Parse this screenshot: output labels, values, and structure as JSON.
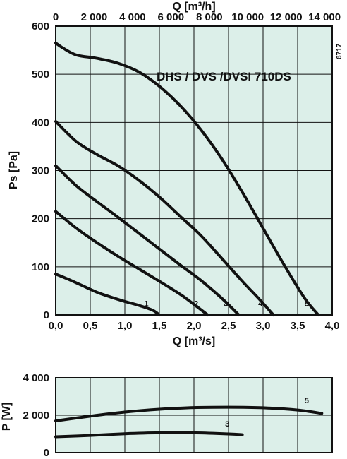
{
  "chart_data": [
    {
      "type": "line",
      "title": "DHS / DVS /DVSI 710DS",
      "code": "6717",
      "xlabel": "Q [m³/s]",
      "x2label": "Q [m³/h]",
      "ylabel": "Ps [Pa]",
      "xlim": [
        0,
        4.0
      ],
      "x2lim": [
        0,
        14400
      ],
      "ylim": [
        0,
        600
      ],
      "xticks": [
        "0,0",
        "0,5",
        "1,0",
        "1,5",
        "2,0",
        "2,5",
        "3,0",
        "3,5",
        "4,0"
      ],
      "x2ticks": [
        "0",
        "2 000",
        "4 000",
        "6 000",
        "8 000",
        "10 000",
        "12 000",
        "14 000"
      ],
      "yticks": [
        "0",
        "100",
        "200",
        "300",
        "400",
        "500",
        "600"
      ],
      "grid": true,
      "background": "#dcefe9",
      "series": [
        {
          "name": "1",
          "x": [
            0.0,
            0.2,
            0.4,
            0.6,
            0.8,
            1.0,
            1.2,
            1.4,
            1.5
          ],
          "y": [
            85,
            73,
            60,
            47,
            37,
            28,
            20,
            10,
            0
          ],
          "label_at": [
            1.28,
            18
          ]
        },
        {
          "name": "2",
          "x": [
            0.0,
            0.3,
            0.6,
            0.9,
            1.2,
            1.5,
            1.8,
            2.0,
            2.2
          ],
          "y": [
            215,
            180,
            150,
            122,
            96,
            70,
            43,
            22,
            0
          ],
          "label_at": [
            2.0,
            18
          ]
        },
        {
          "name": "3",
          "x": [
            0.0,
            0.3,
            0.6,
            0.9,
            1.2,
            1.5,
            1.8,
            2.1,
            2.4,
            2.65
          ],
          "y": [
            310,
            268,
            235,
            203,
            170,
            137,
            104,
            72,
            35,
            0
          ],
          "label_at": [
            2.43,
            18
          ]
        },
        {
          "name": "4",
          "x": [
            0.0,
            0.3,
            0.6,
            0.9,
            1.2,
            1.5,
            1.8,
            2.1,
            2.4,
            2.7,
            2.95,
            3.15
          ],
          "y": [
            402,
            360,
            333,
            310,
            280,
            245,
            205,
            165,
            118,
            70,
            32,
            0
          ],
          "label_at": [
            2.93,
            18
          ]
        },
        {
          "name": "5",
          "x": [
            0.0,
            0.1,
            0.3,
            0.6,
            0.9,
            1.2,
            1.5,
            1.8,
            2.1,
            2.4,
            2.7,
            3.0,
            3.3,
            3.6,
            3.8
          ],
          "y": [
            565,
            555,
            540,
            533,
            523,
            505,
            475,
            435,
            385,
            325,
            255,
            180,
            105,
            35,
            0
          ],
          "label_at": [
            3.6,
            18
          ]
        }
      ]
    },
    {
      "type": "line",
      "ylabel": "P [W]",
      "xlim": [
        0,
        4.0
      ],
      "ylim": [
        0,
        4000
      ],
      "yticks": [
        "0",
        "2 000",
        "4 000"
      ],
      "grid": true,
      "background": "#dcefe9",
      "series": [
        {
          "name": "5",
          "x": [
            0.0,
            0.5,
            1.0,
            1.5,
            2.0,
            2.5,
            3.0,
            3.5,
            3.85
          ],
          "y": [
            1700,
            1950,
            2170,
            2320,
            2410,
            2430,
            2400,
            2280,
            2100
          ],
          "label_at": [
            3.6,
            2650
          ]
        },
        {
          "name": "3",
          "x": [
            0.0,
            0.5,
            1.0,
            1.5,
            2.0,
            2.5,
            2.7
          ],
          "y": [
            850,
            920,
            1010,
            1060,
            1060,
            1000,
            960
          ],
          "label_at": [
            2.45,
            1400
          ]
        }
      ]
    }
  ]
}
